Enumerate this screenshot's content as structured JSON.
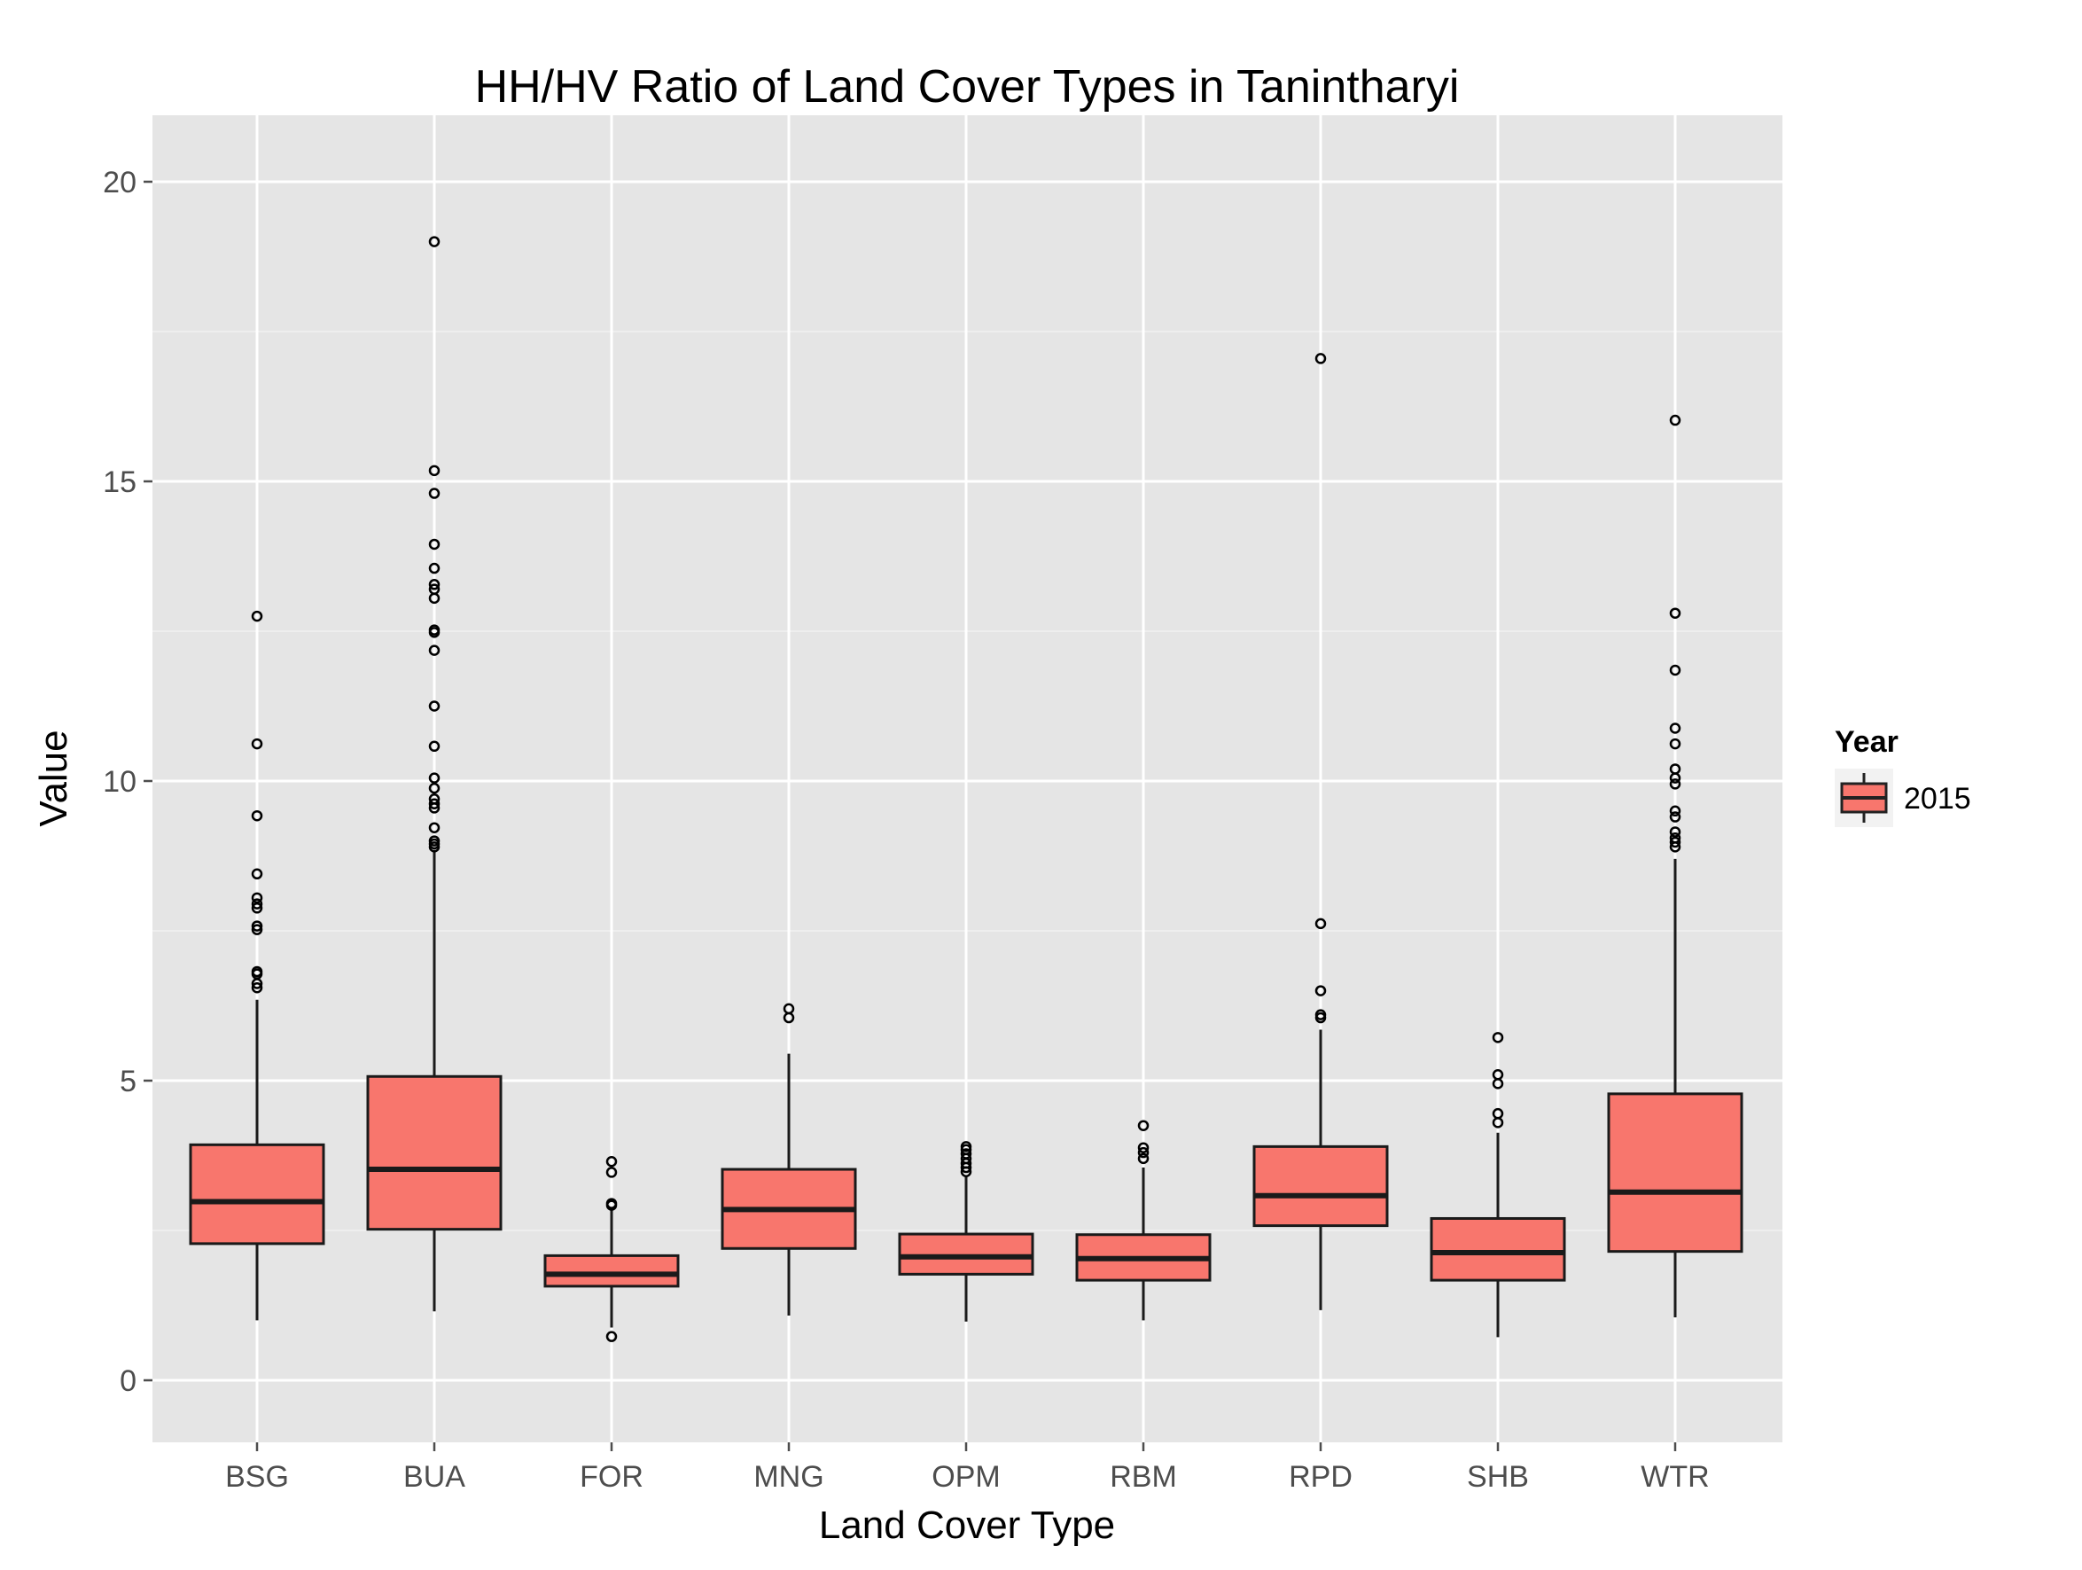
{
  "chart_data": {
    "type": "box",
    "title": "HH/HV Ratio of Land Cover Types in Tanintharyi",
    "xlabel": "Land Cover Type",
    "ylabel": "Value",
    "ylim": [
      -1,
      21
    ],
    "yticks": [
      0,
      5,
      10,
      15,
      20
    ],
    "ytick_labels": [
      "0",
      "5",
      "10",
      "15",
      "20"
    ],
    "grid": true,
    "legend": {
      "title": "Year",
      "position": "right",
      "entries": [
        {
          "label": "2015",
          "color": "#F8766D"
        }
      ]
    },
    "fill_color": "#F8766D",
    "categories": [
      "BSG",
      "BUA",
      "FOR",
      "MNG",
      "OPM",
      "RBM",
      "RPD",
      "SHB",
      "WTR"
    ],
    "boxes": [
      {
        "category": "BSG",
        "lower_whisker": 1.0,
        "q1": 2.28,
        "median": 2.98,
        "q3": 3.93,
        "upper_whisker": 6.35,
        "outliers": [
          6.55,
          6.62,
          6.78,
          6.82,
          7.52,
          7.58,
          7.88,
          7.95,
          8.05,
          8.45,
          9.42,
          10.62,
          12.75
        ]
      },
      {
        "category": "BUA",
        "lower_whisker": 1.15,
        "q1": 2.52,
        "median": 3.52,
        "q3": 5.07,
        "upper_whisker": 8.85,
        "outliers": [
          8.9,
          8.95,
          9.0,
          9.22,
          9.55,
          9.62,
          9.7,
          9.88,
          10.05,
          10.58,
          11.25,
          12.18,
          12.48,
          12.52,
          13.05,
          13.2,
          13.28,
          13.55,
          13.95,
          14.8,
          15.18,
          19.0
        ]
      },
      {
        "category": "FOR",
        "lower_whisker": 0.88,
        "q1": 1.57,
        "median": 1.77,
        "q3": 2.08,
        "upper_whisker": 2.85,
        "outliers": [
          0.73,
          2.92,
          2.95,
          3.47,
          3.65
        ]
      },
      {
        "category": "MNG",
        "lower_whisker": 1.08,
        "q1": 2.2,
        "median": 2.85,
        "q3": 3.52,
        "upper_whisker": 5.45,
        "outliers": [
          6.05,
          6.2
        ]
      },
      {
        "category": "OPM",
        "lower_whisker": 0.98,
        "q1": 1.77,
        "median": 2.06,
        "q3": 2.44,
        "upper_whisker": 3.4,
        "outliers": [
          3.48,
          3.55,
          3.62,
          3.7,
          3.78,
          3.85,
          3.9
        ]
      },
      {
        "category": "RBM",
        "lower_whisker": 1.0,
        "q1": 1.67,
        "median": 2.03,
        "q3": 2.43,
        "upper_whisker": 3.55,
        "outliers": [
          3.7,
          3.8,
          3.88,
          4.25
        ]
      },
      {
        "category": "RPD",
        "lower_whisker": 1.17,
        "q1": 2.58,
        "median": 3.08,
        "q3": 3.9,
        "upper_whisker": 5.85,
        "outliers": [
          6.05,
          6.1,
          6.5,
          7.62,
          17.05
        ]
      },
      {
        "category": "SHB",
        "lower_whisker": 0.72,
        "q1": 1.67,
        "median": 2.13,
        "q3": 2.7,
        "upper_whisker": 4.13,
        "outliers": [
          4.3,
          4.45,
          4.95,
          5.1,
          5.72
        ]
      },
      {
        "category": "WTR",
        "lower_whisker": 1.05,
        "q1": 2.15,
        "median": 3.14,
        "q3": 4.78,
        "upper_whisker": 8.7,
        "outliers": [
          8.9,
          8.98,
          9.05,
          9.15,
          9.4,
          9.5,
          9.95,
          10.05,
          10.2,
          10.62,
          10.88,
          11.85,
          12.8,
          16.02
        ]
      }
    ]
  }
}
